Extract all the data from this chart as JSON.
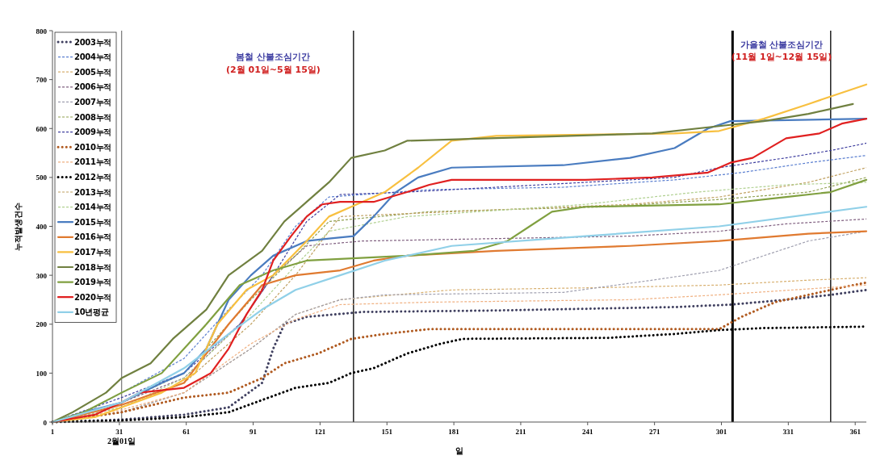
{
  "chart_data": {
    "type": "line",
    "xlabel": "일",
    "ylabel": "누적발생건수",
    "xlim": [
      1,
      366
    ],
    "ylim": [
      0,
      800
    ],
    "xticks": [
      1,
      31,
      61,
      91,
      121,
      151,
      181,
      211,
      241,
      271,
      301,
      331,
      361
    ],
    "yticks": [
      0,
      100,
      200,
      300,
      400,
      500,
      600,
      700,
      800
    ],
    "grid": false,
    "legend": "top left",
    "marker": "none",
    "ref_lines": [
      {
        "axis": "x",
        "value": 32,
        "label": "2월01일",
        "color": "#808080"
      },
      {
        "axis": "x",
        "value": 136,
        "color": "#000000"
      },
      {
        "axis": "x",
        "value": 306,
        "color": "#000000"
      },
      {
        "axis": "x",
        "value": 350,
        "color": "#000000"
      }
    ],
    "annotations": [
      "봄철 산불조심기간",
      "(2월 01일~5월 15일)",
      "가을철 산불조심기간",
      "(11월 1일~12월 15일)"
    ],
    "series": [
      {
        "name": "2003누적",
        "color": "#404060",
        "line_style": "dotted",
        "x": [
          1,
          32,
          60,
          80,
          95,
          100,
          105,
          115,
          140,
          200,
          280,
          305,
          330,
          350,
          366
        ],
        "values": [
          0,
          5,
          15,
          30,
          80,
          150,
          200,
          215,
          225,
          228,
          235,
          240,
          250,
          260,
          270
        ]
      },
      {
        "name": "2004누적",
        "color": "#5b7fd0",
        "line_style": "dashed",
        "x": [
          1,
          20,
          32,
          60,
          80,
          95,
          110,
          125,
          170,
          230,
          280,
          310,
          340,
          366
        ],
        "values": [
          0,
          30,
          60,
          130,
          230,
          300,
          400,
          460,
          475,
          480,
          495,
          510,
          530,
          545
        ]
      },
      {
        "name": "2005누적",
        "color": "#d8b070",
        "line_style": "dashed",
        "x": [
          1,
          32,
          60,
          90,
          110,
          130,
          180,
          250,
          300,
          340,
          366
        ],
        "values": [
          0,
          20,
          60,
          150,
          220,
          250,
          270,
          275,
          280,
          290,
          295
        ]
      },
      {
        "name": "2006누적",
        "color": "#806080",
        "line_style": "dashed",
        "x": [
          1,
          32,
          60,
          85,
          100,
          115,
          140,
          200,
          260,
          300,
          330,
          366
        ],
        "values": [
          0,
          40,
          90,
          200,
          300,
          360,
          370,
          375,
          380,
          390,
          405,
          415
        ]
      },
      {
        "name": "2007누적",
        "color": "#a0a0b0",
        "line_style": "dashed",
        "x": [
          1,
          32,
          60,
          90,
          110,
          130,
          150,
          230,
          270,
          300,
          320,
          340,
          366
        ],
        "values": [
          0,
          20,
          60,
          150,
          220,
          250,
          260,
          265,
          290,
          310,
          340,
          370,
          390
        ]
      },
      {
        "name": "2008누적",
        "color": "#90a050",
        "line_style": "dashed",
        "x": [
          1,
          32,
          60,
          90,
          110,
          125,
          170,
          250,
          300,
          340,
          366
        ],
        "values": [
          0,
          40,
          100,
          250,
          340,
          410,
          430,
          440,
          455,
          470,
          500
        ]
      },
      {
        "name": "2009누적",
        "color": "#4040a0",
        "line_style": "dashed",
        "x": [
          1,
          32,
          60,
          85,
          100,
          115,
          130,
          160,
          200,
          280,
          300,
          330,
          350,
          366
        ],
        "values": [
          0,
          50,
          100,
          200,
          300,
          410,
          465,
          470,
          480,
          500,
          520,
          540,
          555,
          570
        ]
      },
      {
        "name": "2010누적",
        "color": "#b05a20",
        "line_style": "dotted",
        "x": [
          1,
          32,
          60,
          80,
          95,
          105,
          120,
          135,
          150,
          170,
          300,
          310,
          325,
          340,
          355,
          366
        ],
        "values": [
          0,
          20,
          50,
          60,
          90,
          120,
          140,
          170,
          180,
          190,
          190,
          215,
          245,
          260,
          275,
          285
        ]
      },
      {
        "name": "2011누적",
        "color": "#f0b080",
        "line_style": "dashed",
        "x": [
          1,
          32,
          60,
          90,
          110,
          130,
          170,
          260,
          300,
          366
        ],
        "values": [
          0,
          25,
          60,
          160,
          210,
          240,
          245,
          250,
          260,
          280
        ]
      },
      {
        "name": "2012누적",
        "color": "#000000",
        "line_style": "dotted",
        "x": [
          1,
          32,
          60,
          80,
          95,
          110,
          125,
          135,
          145,
          160,
          175,
          185,
          250,
          280,
          300,
          320,
          366
        ],
        "values": [
          0,
          3,
          10,
          20,
          45,
          70,
          80,
          100,
          110,
          140,
          160,
          170,
          172,
          180,
          188,
          192,
          195
        ]
      },
      {
        "name": "2013누적",
        "color": "#c0a060",
        "line_style": "dashed",
        "x": [
          1,
          32,
          60,
          90,
          110,
          130,
          180,
          260,
          300,
          340,
          366
        ],
        "values": [
          0,
          30,
          80,
          200,
          300,
          420,
          430,
          445,
          460,
          490,
          520
        ]
      },
      {
        "name": "2014누적",
        "color": "#b0d090",
        "line_style": "dashed",
        "x": [
          1,
          32,
          60,
          90,
          110,
          125,
          160,
          240,
          290,
          330,
          366
        ],
        "values": [
          0,
          30,
          90,
          220,
          320,
          390,
          420,
          445,
          470,
          485,
          490
        ]
      },
      {
        "name": "2015누적",
        "color": "#4a7cc0",
        "line_style": "solid",
        "x": [
          1,
          15,
          32,
          50,
          60,
          70,
          80,
          90,
          100,
          115,
          125,
          136,
          145,
          155,
          165,
          180,
          230,
          260,
          280,
          295,
          305,
          366
        ],
        "values": [
          0,
          20,
          40,
          80,
          100,
          150,
          250,
          300,
          340,
          370,
          375,
          380,
          420,
          470,
          500,
          520,
          525,
          540,
          560,
          600,
          615,
          620
        ]
      },
      {
        "name": "2016누적",
        "color": "#e07a30",
        "line_style": "solid",
        "x": [
          1,
          32,
          60,
          80,
          95,
          110,
          130,
          145,
          160,
          200,
          260,
          300,
          340,
          366
        ],
        "values": [
          0,
          35,
          80,
          200,
          280,
          300,
          310,
          330,
          340,
          350,
          360,
          370,
          385,
          390
        ]
      },
      {
        "name": "2017누적",
        "color": "#f8c040",
        "line_style": "solid",
        "x": [
          1,
          20,
          32,
          50,
          65,
          75,
          88,
          100,
          115,
          125,
          135,
          150,
          165,
          180,
          200,
          280,
          300,
          320,
          340,
          366
        ],
        "values": [
          0,
          10,
          30,
          60,
          100,
          200,
          270,
          300,
          370,
          420,
          440,
          470,
          520,
          575,
          585,
          590,
          595,
          620,
          650,
          690
        ]
      },
      {
        "name": "2018누적",
        "color": "#708040",
        "line_style": "solid",
        "x": [
          1,
          10,
          25,
          32,
          45,
          55,
          70,
          80,
          95,
          105,
          115,
          125,
          135,
          150,
          160,
          270,
          300,
          320,
          340,
          360
        ],
        "values": [
          0,
          20,
          60,
          90,
          120,
          170,
          230,
          300,
          350,
          410,
          450,
          490,
          540,
          555,
          575,
          590,
          605,
          615,
          630,
          650
        ]
      },
      {
        "name": "2019누적",
        "color": "#80a040",
        "line_style": "solid",
        "x": [
          1,
          15,
          32,
          50,
          70,
          85,
          100,
          115,
          160,
          190,
          205,
          215,
          225,
          240,
          300,
          330,
          350,
          366
        ],
        "values": [
          0,
          20,
          60,
          100,
          200,
          280,
          310,
          330,
          340,
          350,
          370,
          400,
          430,
          440,
          445,
          460,
          470,
          495
        ]
      },
      {
        "name": "2020누적",
        "color": "#e02020",
        "line_style": "solid",
        "x": [
          1,
          20,
          32,
          40,
          50,
          60,
          72,
          80,
          88,
          95,
          100,
          108,
          115,
          122,
          130,
          145,
          160,
          170,
          180,
          240,
          270,
          295,
          305,
          315,
          330,
          345,
          355,
          366
        ],
        "values": [
          0,
          15,
          40,
          60,
          65,
          70,
          100,
          150,
          220,
          270,
          330,
          380,
          420,
          445,
          450,
          450,
          470,
          485,
          495,
          495,
          500,
          510,
          530,
          540,
          580,
          590,
          610,
          620
        ]
      },
      {
        "name": "10년평균",
        "color": "#90d0e8",
        "line_style": "solid",
        "x": [
          1,
          32,
          60,
          80,
          95,
          110,
          130,
          150,
          180,
          240,
          300,
          366
        ],
        "values": [
          0,
          40,
          110,
          180,
          230,
          270,
          300,
          330,
          360,
          380,
          400,
          440
        ]
      }
    ]
  }
}
